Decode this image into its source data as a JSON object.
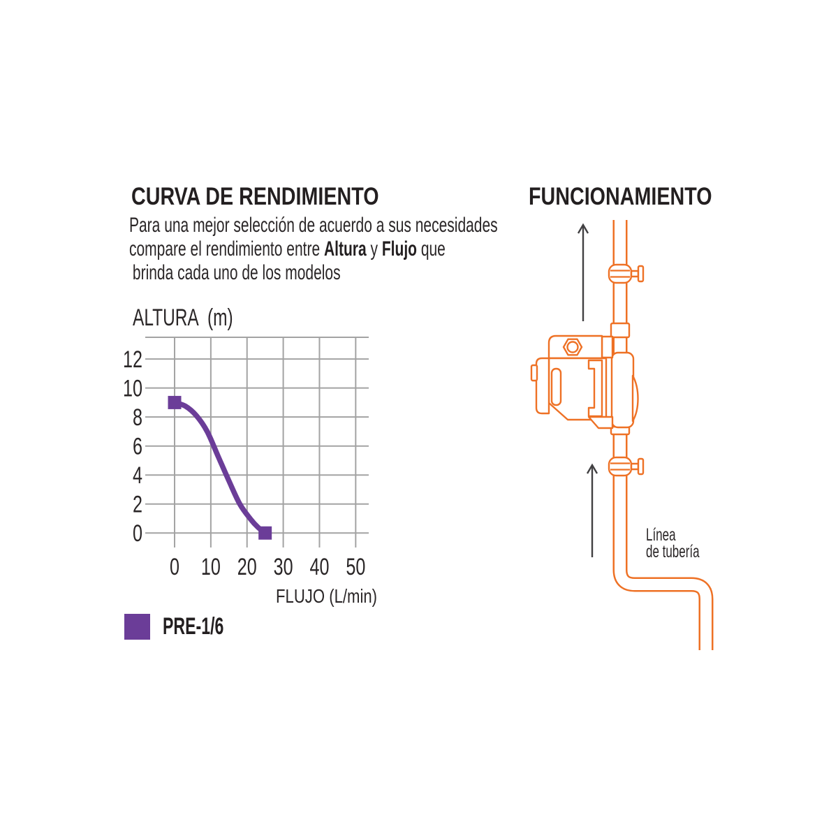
{
  "colors": {
    "background": "#FFFFFF",
    "accent_orange": "#EE7125",
    "series_purple": "#6B3D98",
    "grid_gray": "#A3A3A3",
    "text_dark": "#231F20",
    "arrow_gray": "#414042"
  },
  "performance": {
    "title": "CURVA DE RENDIMIENTO",
    "description": {
      "line1": "Para una mejor selección de acuerdo a sus necesidades",
      "line2_parts": {
        "t1": "compare el rendimiento entre ",
        "b1": "Altura",
        "t2": " y ",
        "b2": "Flujo",
        "t3": " que"
      },
      "line3": "brinda cada uno de los modelos"
    },
    "legend": {
      "label": "PRE-1/6",
      "color": "#6B3D98"
    }
  },
  "chart_data": {
    "type": "line",
    "title": "",
    "xlabel": "FLUJO (L/min)",
    "ylabel": "ALTURA  (m)",
    "x_ticks": [
      0,
      10,
      20,
      30,
      40,
      50
    ],
    "y_ticks": [
      0,
      2,
      4,
      6,
      8,
      10,
      12
    ],
    "xlim": [
      -8.1,
      53.6
    ],
    "ylim": [
      -1,
      13.5
    ],
    "grid": true,
    "grid_color": "#A3A3A3",
    "legend_position": "bottom-left",
    "series": [
      {
        "name": "PRE-1/6",
        "color": "#6B3D98",
        "line_width": 7.5,
        "marker": "square",
        "marker_size": 19,
        "marker_points": [
          [
            0,
            9
          ],
          [
            25,
            0
          ]
        ],
        "points": [
          [
            0,
            9
          ],
          [
            3,
            8.75
          ],
          [
            6,
            8.1
          ],
          [
            9,
            7.0
          ],
          [
            12,
            5.3
          ],
          [
            15,
            3.6
          ],
          [
            18,
            2.0
          ],
          [
            21,
            0.95
          ],
          [
            23,
            0.4
          ],
          [
            25,
            0
          ]
        ]
      }
    ]
  },
  "operation": {
    "title": "FUNCIONAMIENTO",
    "pipe_label": {
      "line1": "Línea",
      "line2": "de tubería"
    }
  }
}
